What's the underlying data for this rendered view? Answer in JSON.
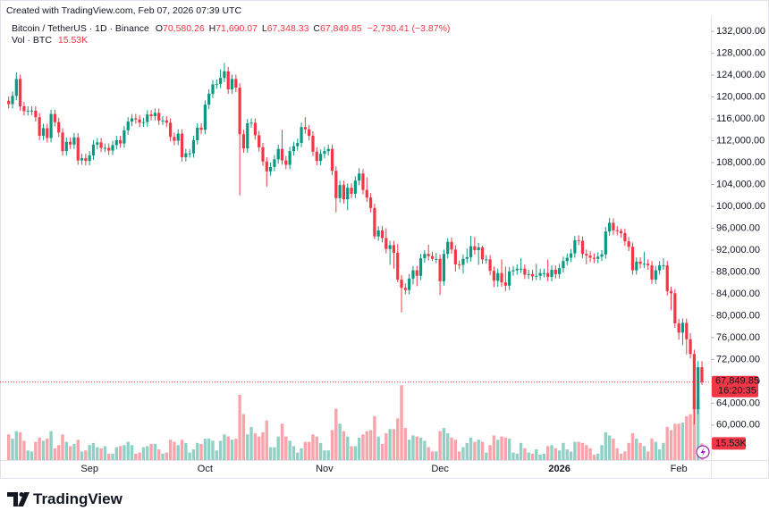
{
  "chart_data": {
    "type": "candlestick",
    "created": "Created with TradingView.com, Feb 07, 2026 07:39 UTC",
    "title": "Bitcoin / TetherUS · 1D · Binance",
    "ohlc_legend": [
      {
        "key": "O",
        "value": "70,580.26"
      },
      {
        "key": "H",
        "value": "71,690.07"
      },
      {
        "key": "L",
        "value": "67,348.33"
      },
      {
        "key": "C",
        "value": "67,849.85"
      }
    ],
    "change": "−2,730.41 (−3.87%)",
    "countdown": "16:20:35",
    "brand": "TradingView",
    "up_color": "#089981",
    "down_color": "#f23645",
    "ylim": [
      53600,
      134800
    ],
    "yticks": [
      {
        "value": 60000,
        "label": "60,000.00"
      },
      {
        "value": 64000,
        "label": "64,000.00"
      },
      {
        "value": 68000,
        "label": "68,000.00"
      },
      {
        "value": 72000,
        "label": "72,000.00"
      },
      {
        "value": 76000,
        "label": "76,000.00"
      },
      {
        "value": 80000,
        "label": "80,000.00"
      },
      {
        "value": 84000,
        "label": "84,000.00"
      },
      {
        "value": 88000,
        "label": "88,000.00"
      },
      {
        "value": 92000,
        "label": "92,000.00"
      },
      {
        "value": 96000,
        "label": "96,000.00"
      },
      {
        "value": 100000,
        "label": "100,000.00"
      },
      {
        "value": 104000,
        "label": "104,000.00"
      },
      {
        "value": 108000,
        "label": "108,000.00"
      },
      {
        "value": 112000,
        "label": "112,000.00"
      },
      {
        "value": 116000,
        "label": "116,000.00"
      },
      {
        "value": 120000,
        "label": "120,000.00"
      },
      {
        "value": 124000,
        "label": "124,000.00"
      },
      {
        "value": 128000,
        "label": "128,000.00"
      },
      {
        "value": 132000,
        "label": "132,000.00"
      }
    ],
    "grid": false,
    "categories": [
      null,
      null,
      null,
      null,
      null,
      null,
      null,
      null,
      null,
      null,
      null,
      null,
      null,
      null,
      null,
      null,
      null,
      null,
      null,
      null,
      null,
      "Sep",
      null,
      null,
      null,
      null,
      null,
      null,
      null,
      null,
      null,
      null,
      null,
      null,
      null,
      null,
      null,
      null,
      null,
      null,
      null,
      null,
      null,
      null,
      null,
      null,
      null,
      null,
      null,
      null,
      null,
      "Oct",
      null,
      null,
      null,
      null,
      null,
      null,
      null,
      null,
      null,
      null,
      null,
      null,
      null,
      null,
      null,
      null,
      null,
      null,
      null,
      null,
      null,
      null,
      null,
      null,
      null,
      null,
      null,
      null,
      null,
      null,
      "Nov",
      null,
      null,
      null,
      null,
      null,
      null,
      null,
      null,
      null,
      null,
      null,
      null,
      null,
      null,
      null,
      null,
      null,
      null,
      null,
      null,
      null,
      null,
      null,
      null,
      null,
      null,
      null,
      null,
      null,
      "Dec",
      null,
      null,
      null,
      null,
      null,
      null,
      null,
      null,
      null,
      null,
      null,
      null,
      null,
      null,
      null,
      null,
      null,
      null,
      null,
      null,
      null,
      null,
      null,
      null,
      null,
      null,
      null,
      null,
      null,
      null,
      "2026",
      null,
      null,
      null,
      null,
      null,
      null,
      null,
      null,
      null,
      null,
      null,
      null,
      null,
      null,
      null,
      null,
      null,
      null,
      null,
      null,
      null,
      null,
      null,
      null,
      null,
      null,
      null,
      null,
      null,
      null,
      "Feb",
      null,
      null,
      null,
      null,
      null,
      null
    ],
    "open": [
      119300,
      118700,
      120200,
      123300,
      118300,
      117400,
      117500,
      117500,
      116300,
      112900,
      114300,
      112500,
      116900,
      115400,
      113500,
      110100,
      111800,
      111300,
      112600,
      108400,
      108800,
      108300,
      109300,
      111300,
      111700,
      110700,
      110700,
      110200,
      111200,
      112100,
      111500,
      113900,
      115500,
      116100,
      115900,
      115300,
      115400,
      116800,
      116500,
      117100,
      115700,
      115700,
      115300,
      112700,
      112000,
      113300,
      109000,
      109700,
      109700,
      112100,
      114400,
      114000,
      118600,
      120600,
      122300,
      122400,
      123500,
      124700,
      121400,
      123300,
      121700,
      113200,
      110600,
      115200,
      115300,
      113000,
      110800,
      108200,
      106400,
      107200,
      108600,
      110500,
      108400,
      107600,
      110100,
      111000,
      111600,
      114500,
      114100,
      112900,
      110000,
      108300,
      109600,
      110100,
      110500,
      106500,
      101500,
      103900,
      101300,
      103400,
      102300,
      104700,
      106000,
      103000,
      101600,
      99700,
      94500,
      95600,
      94200,
      92200,
      92900,
      91500,
      86600,
      85100,
      84700,
      86800,
      88300,
      87300,
      90500,
      91300,
      90900,
      90400,
      90400,
      86300,
      91300,
      93500,
      92100,
      89400,
      89300,
      90400,
      90700,
      92700,
      92000,
      92500,
      90300,
      90300,
      88200,
      86400,
      87800,
      86100,
      85500,
      88100,
      88300,
      88600,
      88600,
      87500,
      87600,
      87200,
      87300,
      87800,
      87800,
      87100,
      88400,
      87600,
      88700,
      90000,
      90600,
      91400,
      93800,
      93700,
      91300,
      91000,
      90600,
      90400,
      90800,
      91200,
      95400,
      97000,
      95600,
      95500,
      95100,
      93600,
      92600,
      88300,
      89900,
      89500,
      89500,
      89200,
      86600,
      88300,
      89200,
      89200,
      84500,
      84100,
      78600,
      76900,
      78700,
      75700,
      73000,
      62900,
      70580.26
    ],
    "high": [
      120100,
      121000,
      124500,
      124100,
      119100,
      118300,
      118300,
      118300,
      117100,
      115100,
      115100,
      117700,
      117700,
      116200,
      114300,
      112600,
      112600,
      113400,
      113400,
      109600,
      109600,
      110100,
      112100,
      112500,
      112500,
      111500,
      111500,
      112000,
      112900,
      112900,
      114700,
      116300,
      116900,
      116900,
      116700,
      116200,
      117600,
      117600,
      117900,
      117900,
      116500,
      116500,
      116100,
      113500,
      114100,
      114100,
      110500,
      110500,
      112900,
      115200,
      115200,
      119400,
      121400,
      123100,
      123200,
      125100,
      126200,
      125500,
      124100,
      124100,
      122500,
      114000,
      116000,
      116100,
      116100,
      113800,
      111600,
      109000,
      108000,
      109400,
      111300,
      114000,
      109200,
      110900,
      111800,
      112400,
      115300,
      116300,
      114900,
      113700,
      110800,
      110400,
      110900,
      111300,
      111300,
      107300,
      104700,
      104700,
      104200,
      104200,
      105500,
      107000,
      106800,
      105300,
      102400,
      100500,
      96400,
      96400,
      96000,
      93700,
      93700,
      93100,
      87400,
      85900,
      87600,
      89100,
      89100,
      91300,
      92000,
      93000,
      91700,
      91500,
      91200,
      92100,
      94200,
      94300,
      92900,
      90100,
      91200,
      92300,
      94600,
      94400,
      93300,
      92800,
      91100,
      91100,
      89000,
      88600,
      90300,
      89000,
      88900,
      89100,
      89400,
      90500,
      89400,
      88400,
      88400,
      89500,
      88600,
      88600,
      90300,
      89200,
      89200,
      89500,
      90800,
      91400,
      92200,
      94600,
      94700,
      94500,
      92100,
      91800,
      91400,
      91600,
      92000,
      96200,
      97900,
      97800,
      96400,
      95900,
      95900,
      94400,
      93400,
      90700,
      90700,
      91700,
      90300,
      90000,
      89100,
      90000,
      90500,
      90000,
      85300,
      84900,
      79400,
      79500,
      79500,
      76800,
      73800,
      71700,
      71690.07
    ],
    "low": [
      117900,
      117900,
      119400,
      117500,
      116600,
      116600,
      116700,
      115500,
      112100,
      112100,
      111700,
      111700,
      114600,
      112700,
      109300,
      109300,
      110500,
      110500,
      107600,
      107600,
      107500,
      107500,
      108500,
      110500,
      109900,
      109900,
      109400,
      109400,
      110400,
      110700,
      110700,
      113100,
      114700,
      115100,
      114500,
      114500,
      114600,
      115700,
      115700,
      114900,
      114900,
      114500,
      111900,
      111200,
      111200,
      108200,
      108200,
      108900,
      108900,
      111300,
      113200,
      113200,
      117800,
      119800,
      121500,
      121600,
      122700,
      120600,
      120600,
      120900,
      102000,
      109800,
      109800,
      114400,
      112200,
      110000,
      107400,
      103600,
      105600,
      106400,
      107800,
      107600,
      106800,
      106800,
      109300,
      110200,
      110800,
      113300,
      112100,
      109200,
      107500,
      107500,
      108800,
      109300,
      105700,
      98900,
      100700,
      100500,
      99300,
      101500,
      101500,
      103900,
      102200,
      100800,
      98900,
      94000,
      93700,
      93400,
      91400,
      89300,
      88600,
      86100,
      80600,
      83900,
      83900,
      85700,
      85400,
      86500,
      89700,
      90100,
      90000,
      89600,
      83800,
      85500,
      90500,
      91300,
      88100,
      88500,
      87700,
      89600,
      89900,
      91200,
      89300,
      89500,
      89500,
      87400,
      85200,
      85300,
      85300,
      84500,
      84700,
      87300,
      87500,
      87800,
      86700,
      86700,
      86400,
      86500,
      86500,
      87000,
      86300,
      86300,
      86800,
      86800,
      87900,
      89200,
      89800,
      90600,
      92900,
      90500,
      89400,
      89800,
      89600,
      89600,
      90000,
      90400,
      94600,
      94800,
      94700,
      94300,
      92800,
      91800,
      87500,
      87500,
      88700,
      88700,
      88400,
      85800,
      85800,
      87500,
      88400,
      83700,
      81000,
      77800,
      75600,
      74600,
      72900,
      72200,
      60100,
      62000,
      67348.33
    ],
    "close": [
      118700,
      120200,
      123300,
      118300,
      117400,
      117500,
      117500,
      116300,
      112900,
      114300,
      112500,
      116900,
      115400,
      113500,
      110100,
      111800,
      111300,
      112600,
      108400,
      108800,
      108300,
      109300,
      111300,
      111700,
      110700,
      110700,
      110200,
      111200,
      112100,
      111500,
      113900,
      115500,
      116100,
      115900,
      115300,
      115400,
      116800,
      116500,
      117100,
      115700,
      115700,
      115300,
      112700,
      112000,
      113300,
      109000,
      109700,
      109700,
      112100,
      114400,
      114000,
      118600,
      120600,
      122300,
      122400,
      123500,
      124700,
      121400,
      123300,
      121700,
      113200,
      110600,
      115200,
      115300,
      113000,
      110800,
      108200,
      106400,
      107200,
      108600,
      110500,
      108400,
      107600,
      110100,
      111000,
      111600,
      114500,
      114100,
      112900,
      110000,
      108300,
      109600,
      110100,
      110500,
      106500,
      101500,
      103900,
      101300,
      103400,
      102300,
      104700,
      106000,
      103000,
      101600,
      99700,
      94500,
      95600,
      94200,
      92200,
      92900,
      91500,
      86600,
      85100,
      84700,
      86800,
      88300,
      87300,
      90500,
      91300,
      90900,
      90400,
      90400,
      86300,
      91300,
      93500,
      92100,
      89400,
      89300,
      90400,
      90700,
      92700,
      92000,
      92500,
      90300,
      90300,
      88200,
      86400,
      87800,
      86100,
      85500,
      88100,
      88300,
      88600,
      88600,
      87500,
      87600,
      87200,
      87300,
      87800,
      87800,
      87100,
      88400,
      87600,
      88700,
      90000,
      90600,
      91400,
      93800,
      93700,
      91300,
      91000,
      90600,
      90400,
      90800,
      91200,
      95400,
      97000,
      95600,
      95500,
      95100,
      93600,
      92600,
      88300,
      89900,
      89500,
      89500,
      89200,
      86600,
      88300,
      89200,
      89200,
      84500,
      84100,
      78600,
      76900,
      78700,
      75700,
      73000,
      62900,
      70580.26,
      67849.85
    ],
    "volume": {
      "name": "Vol · BTC",
      "last_value_label": "15.53K",
      "values": [
        24000,
        20000,
        27000,
        26000,
        18000,
        9000,
        8000,
        17000,
        21000,
        18000,
        20000,
        27000,
        11000,
        14000,
        24000,
        17000,
        13000,
        15000,
        19000,
        8000,
        9000,
        14000,
        16000,
        12000,
        11000,
        13000,
        6000,
        6000,
        12000,
        13000,
        14000,
        17000,
        14000,
        6000,
        7000,
        12000,
        13000,
        15000,
        15000,
        10000,
        6000,
        7000,
        19000,
        17000,
        14000,
        19000,
        16000,
        7000,
        10000,
        16000,
        15000,
        20000,
        20000,
        18000,
        9000,
        18000,
        24000,
        22000,
        19000,
        20000,
        61000,
        43000,
        24000,
        31000,
        25000,
        22000,
        26000,
        37000,
        12000,
        12000,
        22000,
        34000,
        22000,
        18000,
        13000,
        7000,
        11000,
        17000,
        17000,
        24000,
        22000,
        16000,
        9000,
        9000,
        28000,
        48000,
        34000,
        27000,
        22000,
        13000,
        13000,
        21000,
        24000,
        27000,
        28000,
        41000,
        22000,
        15000,
        25000,
        29000,
        29000,
        39000,
        70000,
        30000,
        19000,
        23000,
        22000,
        21000,
        18000,
        12000,
        8000,
        8000,
        27000,
        30000,
        25000,
        21000,
        19000,
        8000,
        12000,
        16000,
        21000,
        17000,
        19000,
        17000,
        7000,
        14000,
        23000,
        19000,
        22000,
        21000,
        20000,
        7000,
        6000,
        16000,
        11000,
        7000,
        6000,
        10000,
        5000,
        6000,
        13000,
        14000,
        11000,
        9000,
        16000,
        10000,
        8000,
        17000,
        17000,
        16000,
        14000,
        11000,
        5000,
        6000,
        14000,
        26000,
        23000,
        20000,
        11000,
        6000,
        8000,
        16000,
        25000,
        20000,
        16000,
        13000,
        8000,
        20000,
        17000,
        10000,
        16000,
        31000,
        28000,
        34000,
        34000,
        35000,
        41000,
        43000,
        71000,
        57000,
        15530
      ]
    }
  }
}
